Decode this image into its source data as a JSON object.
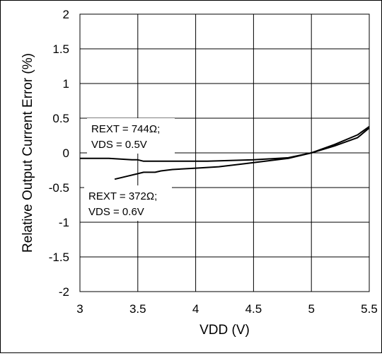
{
  "chart_data": {
    "type": "line",
    "xlabel": "VDD (V)",
    "ylabel": "Relative Output Current Error (%)",
    "xlim": [
      3,
      5.5
    ],
    "ylim": [
      -2,
      2
    ],
    "xticks": [
      "3",
      "3.5",
      "4",
      "4.5",
      "5",
      "5.5"
    ],
    "yticks": [
      "2",
      "1.5",
      "1",
      "0.5",
      "0",
      "-0.5",
      "-1",
      "-1.5",
      "-2"
    ],
    "grid": true,
    "line_color": "#000000",
    "series": [
      {
        "name_lines": [
          "REXT = 744Ω;",
          "VDS = 0.5V"
        ],
        "x": [
          3.0,
          3.25,
          3.45,
          3.5,
          3.55,
          3.7,
          3.9,
          4.1,
          4.3,
          4.5,
          4.8,
          5.0,
          5.2,
          5.4,
          5.5
        ],
        "y": [
          -0.08,
          -0.08,
          -0.1,
          -0.1,
          -0.12,
          -0.12,
          -0.12,
          -0.12,
          -0.11,
          -0.1,
          -0.07,
          0.0,
          0.1,
          0.22,
          0.36
        ]
      },
      {
        "name_lines": [
          "REXT = 372Ω;",
          "VDS = 0.6V"
        ],
        "x": [
          3.3,
          3.4,
          3.5,
          3.55,
          3.6,
          3.65,
          3.7,
          3.8,
          4.0,
          4.2,
          4.4,
          4.6,
          4.8,
          5.0,
          5.2,
          5.4,
          5.5
        ],
        "y": [
          -0.38,
          -0.34,
          -0.3,
          -0.28,
          -0.28,
          -0.28,
          -0.26,
          -0.24,
          -0.22,
          -0.2,
          -0.16,
          -0.12,
          -0.08,
          0.0,
          0.12,
          0.26,
          0.38
        ]
      }
    ]
  }
}
